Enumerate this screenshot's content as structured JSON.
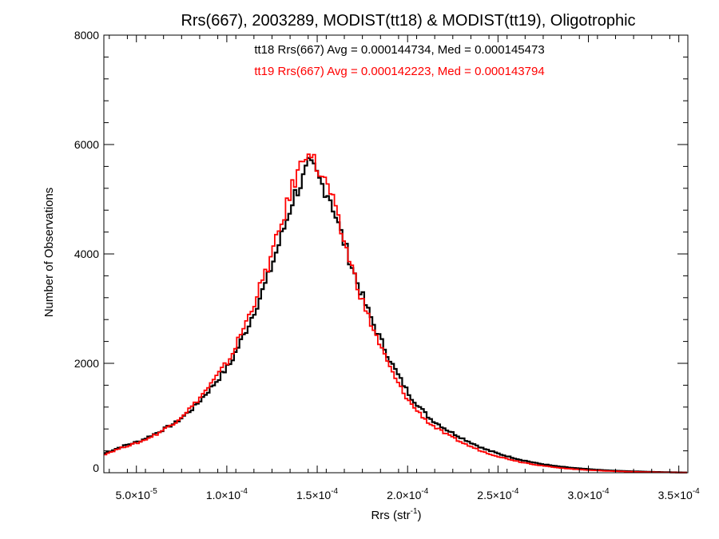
{
  "chart_data": {
    "type": "line",
    "title": "Rrs(667), 2003289, MODIST(tt18) & MODIST(tt19), Oligotrophic",
    "xlabel_main": "Rrs (str",
    "xlabel_sup": "-1",
    "xlabel_close": ")",
    "ylabel": "Number of Observations",
    "xlim": [
      3.2e-05,
      0.000355
    ],
    "ylim": [
      0,
      8000
    ],
    "grid": false,
    "legend": "none",
    "annotations": [
      {
        "text": "tt18 Rrs(667) Avg = 0.000144734, Med = 0.000145473",
        "color": "#000000"
      },
      {
        "text": "tt19 Rrs(667) Avg = 0.000142223, Med = 0.000143794",
        "color": "#ff0000"
      }
    ],
    "xticks": [
      {
        "value": 5e-05,
        "mant": "5.0×10",
        "exp": "-5"
      },
      {
        "value": 0.0001,
        "mant": "1.0×10",
        "exp": "-4"
      },
      {
        "value": 0.00015,
        "mant": "1.5×10",
        "exp": "-4"
      },
      {
        "value": 0.0002,
        "mant": "2.0×10",
        "exp": "-4"
      },
      {
        "value": 0.00025,
        "mant": "2.5×10",
        "exp": "-4"
      },
      {
        "value": 0.0003,
        "mant": "3.0×10",
        "exp": "-4"
      },
      {
        "value": 0.00035,
        "mant": "3.5×10",
        "exp": "-4"
      }
    ],
    "yticks": [
      {
        "value": 0,
        "label": "0"
      },
      {
        "value": 2000,
        "label": "2000"
      },
      {
        "value": 4000,
        "label": "4000"
      },
      {
        "value": 6000,
        "label": "6000"
      },
      {
        "value": 8000,
        "label": "8000"
      }
    ],
    "x": [
      3.2e-05,
      4.2e-05,
      5.2e-05,
      6.2e-05,
      7.2e-05,
      8.2e-05,
      9.2e-05,
      0.000102,
      0.000112,
      0.000122,
      0.000127,
      0.000132,
      0.000137,
      0.000142,
      0.000145,
      0.000148,
      0.000152,
      0.000157,
      0.000162,
      0.000167,
      0.000172,
      0.000177,
      0.000182,
      0.000187,
      0.000192,
      0.000197,
      0.000202,
      0.000212,
      0.000222,
      0.000232,
      0.000242,
      0.000252,
      0.000262,
      0.000272,
      0.000282,
      0.000292,
      0.000302,
      0.000312,
      0.000322,
      0.000332,
      0.000342,
      0.000352,
      0.000355
    ],
    "series": [
      {
        "color": "#000000",
        "values": [
          350,
          480,
          580,
          740,
          920,
          1200,
          1580,
          2000,
          2700,
          3500,
          4000,
          4500,
          5050,
          5350,
          5600,
          5550,
          5300,
          5050,
          4500,
          4000,
          3500,
          3050,
          2650,
          2300,
          1950,
          1650,
          1380,
          1000,
          780,
          600,
          440,
          330,
          240,
          170,
          120,
          85,
          60,
          40,
          28,
          18,
          10,
          5,
          4
        ]
      },
      {
        "color": "#ff0000",
        "values": [
          330,
          460,
          560,
          720,
          940,
          1250,
          1650,
          2100,
          2850,
          3700,
          4200,
          4750,
          5300,
          5700,
          6000,
          5700,
          5450,
          5150,
          4550,
          4000,
          3450,
          2950,
          2550,
          2150,
          1800,
          1500,
          1250,
          900,
          690,
          520,
          380,
          280,
          200,
          140,
          95,
          65,
          45,
          30,
          20,
          12,
          6,
          3,
          2
        ]
      }
    ]
  }
}
